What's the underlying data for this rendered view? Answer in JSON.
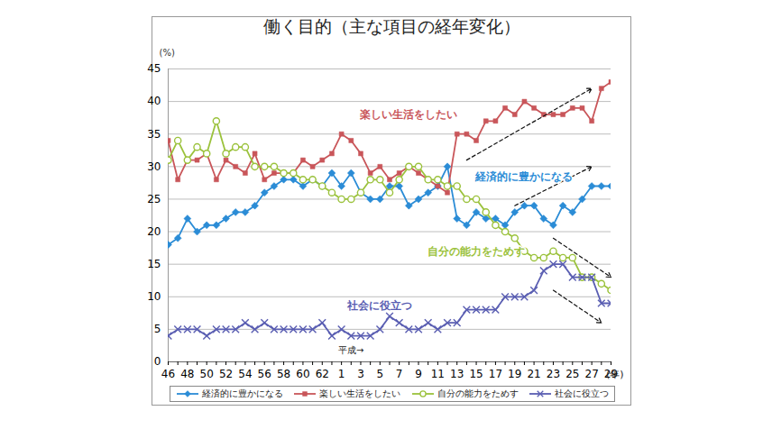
{
  "chart_data": {
    "type": "line",
    "title": "働く目的（主な項目の経年変化）",
    "y_label": "(%)",
    "x_label": "(年)",
    "categories": [
      "46",
      null,
      "48",
      null,
      "50",
      null,
      "52",
      null,
      "54",
      null,
      "56",
      null,
      "58",
      null,
      "60",
      null,
      "62",
      null,
      "1",
      null,
      "3",
      null,
      "5",
      null,
      "7",
      null,
      "9",
      null,
      "11",
      null,
      "13",
      null,
      "15",
      null,
      "17",
      null,
      "19",
      null,
      "21",
      null,
      "23",
      null,
      "25",
      null,
      "27",
      null,
      "29"
    ],
    "ylim": [
      0,
      45
    ],
    "yticks": [
      0,
      5,
      10,
      15,
      20,
      25,
      30,
      35,
      40,
      45
    ],
    "grid": true,
    "legend": "bottom",
    "annotations": [
      "平成→"
    ],
    "series": [
      {
        "name": "経済的に豊かになる",
        "color": "#2b8cd6",
        "marker": "diamond",
        "values": [
          18,
          19,
          22,
          20,
          21,
          21,
          22,
          23,
          23,
          24,
          26,
          27,
          28,
          28,
          27,
          28,
          27,
          29,
          27,
          29,
          26,
          25,
          25,
          27,
          27,
          24,
          25,
          26,
          27,
          30,
          22,
          21,
          23,
          22,
          22,
          21,
          23,
          24,
          24,
          22,
          21,
          24,
          23,
          25,
          27,
          27,
          27
        ]
      },
      {
        "name": "楽しい生活をしたい",
        "color": "#c9565a",
        "marker": "square",
        "values": [
          34,
          28,
          31,
          31,
          32,
          28,
          31,
          30,
          29,
          32,
          28,
          29,
          29,
          29,
          31,
          30,
          31,
          32,
          35,
          34,
          32,
          29,
          30,
          28,
          29,
          30,
          29,
          28,
          27,
          26,
          35,
          35,
          34,
          37,
          37,
          39,
          38,
          40,
          39,
          38,
          38,
          38,
          39,
          39,
          37,
          42,
          43
        ]
      },
      {
        "name": "自分の能力をためす",
        "color": "#9bc23c",
        "marker": "open circle",
        "values": [
          31,
          34,
          31,
          33,
          32,
          37,
          32,
          33,
          33,
          30,
          30,
          30,
          29,
          29,
          28,
          28,
          27,
          26,
          25,
          25,
          26,
          28,
          28,
          26,
          28,
          30,
          30,
          28,
          28,
          27,
          27,
          25,
          25,
          23,
          21,
          20,
          19,
          17,
          16,
          16,
          17,
          16,
          16,
          13,
          13,
          12,
          11
        ]
      },
      {
        "name": "社会に役立つ",
        "color": "#5a5eb2",
        "marker": "times",
        "values": [
          4,
          5,
          5,
          5,
          4,
          5,
          5,
          5,
          6,
          5,
          6,
          5,
          5,
          5,
          5,
          5,
          6,
          4,
          5,
          4,
          4,
          4,
          5,
          7,
          6,
          5,
          5,
          6,
          5,
          6,
          6,
          8,
          8,
          8,
          8,
          10,
          10,
          10,
          11,
          14,
          15,
          15,
          13,
          13,
          13,
          9,
          9
        ]
      }
    ]
  }
}
